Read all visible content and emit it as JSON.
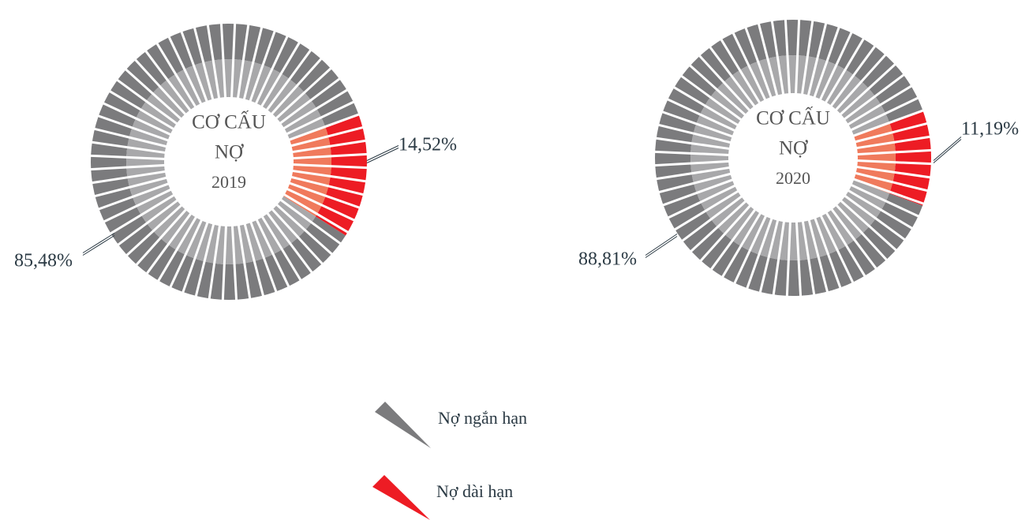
{
  "chart_data": [
    {
      "type": "pie",
      "title": "CƠ CẤU",
      "subtitle": "NỢ",
      "year": "2019",
      "categories": [
        "Nợ ngắn hạn",
        "Nợ dài hạn"
      ],
      "values": [
        85.48,
        14.52
      ],
      "value_labels": [
        "85,48%",
        "14,52%"
      ],
      "colors": [
        "#7b7b7d",
        "#ed1c24"
      ],
      "inner_colors": [
        "#a8a8aa",
        "#f07a5c"
      ]
    },
    {
      "type": "pie",
      "title": "CƠ CẤU",
      "subtitle": "NỢ",
      "year": "2020",
      "categories": [
        "Nợ ngắn hạn",
        "Nợ dài hạn"
      ],
      "values": [
        88.81,
        11.19
      ],
      "value_labels": [
        "88,81%",
        "11,19%"
      ],
      "colors": [
        "#7b7b7d",
        "#ed1c24"
      ],
      "inner_colors": [
        "#a8a8aa",
        "#f07a5c"
      ]
    }
  ]
}
